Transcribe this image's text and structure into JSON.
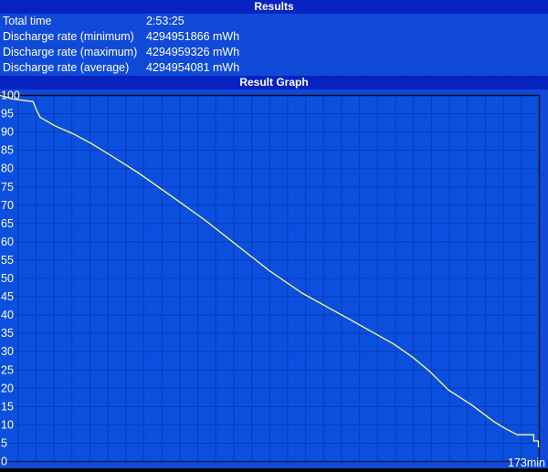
{
  "window": {
    "results_header": "Results",
    "graph_header": "Result Graph"
  },
  "results": {
    "rows": [
      {
        "label": "Total time",
        "value": "2:53:25"
      },
      {
        "label": "Discharge rate (minimum)",
        "value": "4294951866 mWh"
      },
      {
        "label": "Discharge rate (maximum)",
        "value": "4294959326 mWh"
      },
      {
        "label": "Discharge rate (average)",
        "value": "4294954081 mWh"
      }
    ]
  },
  "graph": {
    "end_label": "173min"
  },
  "colors": {
    "header_bg": "#0827cd",
    "row_bg": "#1350e0",
    "plot_bg": "#0e56e8",
    "grid_line": "#0d3ab5",
    "plot_border_dark": "#000a22",
    "plot_border_bottom": "#072465",
    "curve": "#ffff9e",
    "text": "#ffffff"
  },
  "chart_data": {
    "type": "line",
    "title": "Result Graph",
    "xlabel": "",
    "ylabel": "",
    "xlim": [
      0,
      173
    ],
    "ylim": [
      0,
      100
    ],
    "x_unit": "min",
    "grid": true,
    "x_gridline_count": 30,
    "y_ticks": [
      100,
      95,
      90,
      85,
      80,
      75,
      70,
      65,
      60,
      55,
      50,
      45,
      40,
      35,
      30,
      25,
      20,
      15,
      10,
      5,
      0
    ],
    "end_annotation": "173min",
    "series": [
      {
        "name": "battery_charge_percent",
        "color": "#ffff9e",
        "points": [
          [
            0,
            100
          ],
          [
            2.3,
            99.5
          ],
          [
            4.1,
            99
          ],
          [
            10.6,
            98.3
          ],
          [
            11.7,
            96
          ],
          [
            12.9,
            94
          ],
          [
            17.6,
            91.7
          ],
          [
            23.5,
            89.5
          ],
          [
            29.4,
            86.8
          ],
          [
            35.2,
            83.8
          ],
          [
            44.1,
            79
          ],
          [
            55.8,
            72
          ],
          [
            66.1,
            65.7
          ],
          [
            76.4,
            58.8
          ],
          [
            86.6,
            52
          ],
          [
            96.9,
            46
          ],
          [
            104.3,
            42.5
          ],
          [
            111.6,
            39.1
          ],
          [
            118.9,
            35.6
          ],
          [
            126.3,
            32.1
          ],
          [
            132.2,
            28.6
          ],
          [
            138,
            24.5
          ],
          [
            143.9,
            19.5
          ],
          [
            151.2,
            15.5
          ],
          [
            158.6,
            10.8
          ],
          [
            162.1,
            9
          ],
          [
            165.9,
            7.3
          ],
          [
            171.2,
            7.3
          ],
          [
            171.2,
            5.6
          ],
          [
            172.7,
            5.6
          ],
          [
            172.7,
            4.1
          ],
          [
            173,
            4.1
          ]
        ]
      }
    ]
  }
}
